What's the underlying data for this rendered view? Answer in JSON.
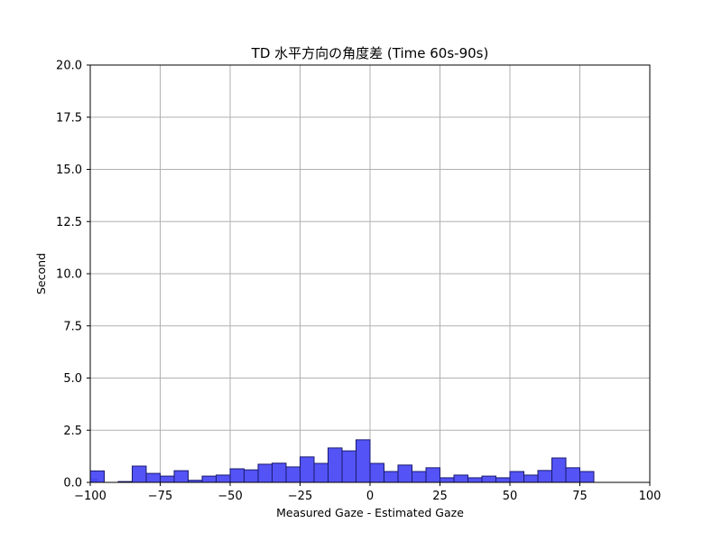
{
  "chart_data": {
    "type": "bar",
    "title": "TD 水平方向の角度差 (Time 60s-90s)",
    "xlabel": "Measured Gaze - Estimated Gaze",
    "ylabel": "Second",
    "xlim": [
      -100,
      100
    ],
    "ylim": [
      0,
      20
    ],
    "xticks": [
      "−100",
      "−75",
      "−50",
      "−25",
      "0",
      "25",
      "50",
      "75",
      "100"
    ],
    "xtick_values": [
      -100,
      -75,
      -50,
      -25,
      0,
      25,
      50,
      75,
      100
    ],
    "yticks": [
      "0.0",
      "2.5",
      "5.0",
      "7.5",
      "10.0",
      "12.5",
      "15.0",
      "17.5",
      "20.0"
    ],
    "ytick_values": [
      0,
      2.5,
      5,
      7.5,
      10,
      12.5,
      15,
      17.5,
      20
    ],
    "grid": true,
    "bar_color": "#4a4af5",
    "edge_color": "#1a1a6e",
    "bin_width": 5,
    "bins": [
      {
        "x": -100,
        "value": 0.17
      },
      {
        "x": -97.5,
        "value": 0.55
      },
      {
        "x": -87.5,
        "value": 0.04
      },
      {
        "x": -82.5,
        "value": 0.78
      },
      {
        "x": -77.5,
        "value": 0.43
      },
      {
        "x": -72.5,
        "value": 0.3
      },
      {
        "x": -67.5,
        "value": 0.56
      },
      {
        "x": -62.5,
        "value": 0.1
      },
      {
        "x": -57.5,
        "value": 0.3
      },
      {
        "x": -52.5,
        "value": 0.35
      },
      {
        "x": -47.5,
        "value": 0.65
      },
      {
        "x": -42.5,
        "value": 0.6
      },
      {
        "x": -37.5,
        "value": 0.87
      },
      {
        "x": -32.5,
        "value": 0.92
      },
      {
        "x": -27.5,
        "value": 0.74
      },
      {
        "x": -22.5,
        "value": 1.22
      },
      {
        "x": -17.5,
        "value": 0.91
      },
      {
        "x": -12.5,
        "value": 1.65
      },
      {
        "x": -7.5,
        "value": 1.51
      },
      {
        "x": -2.5,
        "value": 2.04
      },
      {
        "x": 2.5,
        "value": 0.91
      },
      {
        "x": 7.5,
        "value": 0.52
      },
      {
        "x": 12.5,
        "value": 0.83
      },
      {
        "x": 17.5,
        "value": 0.52
      },
      {
        "x": 22.5,
        "value": 0.7
      },
      {
        "x": 27.5,
        "value": 0.22
      },
      {
        "x": 32.5,
        "value": 0.35
      },
      {
        "x": 37.5,
        "value": 0.22
      },
      {
        "x": 42.5,
        "value": 0.3
      },
      {
        "x": 47.5,
        "value": 0.22
      },
      {
        "x": 52.5,
        "value": 0.52
      },
      {
        "x": 57.5,
        "value": 0.35
      },
      {
        "x": 62.5,
        "value": 0.57
      },
      {
        "x": 67.5,
        "value": 1.17
      },
      {
        "x": 72.5,
        "value": 0.7
      },
      {
        "x": 77.5,
        "value": 0.52
      },
      {
        "x": 82.5,
        "value": 0.0
      },
      {
        "x": 87.5,
        "value": 0.0
      },
      {
        "x": 92.5,
        "value": 0.0
      },
      {
        "x": 97.5,
        "value": 0.0
      }
    ]
  }
}
